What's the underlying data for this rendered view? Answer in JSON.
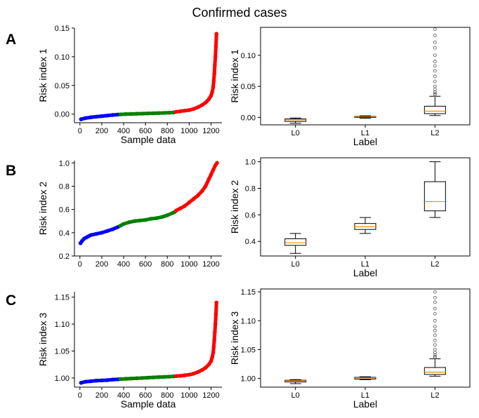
{
  "title": "Confirmed cases",
  "colors": {
    "low": "#0000ff",
    "mid": "#008000",
    "high": "#ff0000",
    "median": "#ff8c00",
    "axis": "#000000",
    "flier": "#555555"
  },
  "rows": [
    {
      "letter": "A"
    },
    {
      "letter": "B"
    },
    {
      "letter": "C"
    }
  ],
  "chart_data": [
    {
      "type": "scatter",
      "row": 0,
      "col": 0,
      "xlabel": "Sample data",
      "ylabel": "Risk index 1",
      "xlim": [
        -50,
        1300
      ],
      "ylim": [
        -0.015,
        0.15
      ],
      "xticks": [
        "0",
        "200",
        "400",
        "600",
        "800",
        "1000",
        "1200"
      ],
      "xtick_values": [
        0,
        200,
        400,
        600,
        800,
        1000,
        1200
      ],
      "yticks": [
        "0.00",
        "0.05",
        "0.10",
        "0.15"
      ],
      "ytick_values": [
        0.0,
        0.05,
        0.1,
        0.15
      ],
      "series": [
        {
          "name": "L0",
          "color": "low",
          "x": [
            10,
            50,
            100,
            150,
            200,
            250,
            300,
            350
          ],
          "y": [
            -0.009,
            -0.007,
            -0.0055,
            -0.0045,
            -0.0035,
            -0.0025,
            -0.0015,
            -0.0008
          ]
        },
        {
          "name": "L1",
          "color": "mid",
          "x": [
            370,
            420,
            470,
            520,
            570,
            620,
            670,
            720,
            770,
            820,
            860
          ],
          "y": [
            -0.0005,
            0.0,
            0.0003,
            0.0006,
            0.0009,
            0.0012,
            0.0015,
            0.0018,
            0.0021,
            0.0025,
            0.003
          ]
        },
        {
          "name": "L2",
          "color": "high",
          "x": [
            880,
            920,
            960,
            1000,
            1040,
            1080,
            1120,
            1150,
            1180,
            1200,
            1210,
            1220,
            1225,
            1230,
            1235,
            1240,
            1245,
            1250
          ],
          "y": [
            0.004,
            0.005,
            0.006,
            0.007,
            0.009,
            0.012,
            0.016,
            0.02,
            0.026,
            0.032,
            0.038,
            0.047,
            0.058,
            0.07,
            0.085,
            0.1,
            0.118,
            0.14
          ]
        }
      ]
    },
    {
      "type": "boxplot",
      "row": 0,
      "col": 1,
      "xlabel": "Label",
      "ylabel": "Risk index 1",
      "ylim": [
        -0.012,
        0.145
      ],
      "yticks": [
        "0.00",
        "0.05",
        "0.10"
      ],
      "ytick_values": [
        0.0,
        0.05,
        0.1
      ],
      "categories": [
        "L0",
        "L1",
        "L2"
      ],
      "boxes": [
        {
          "whislo": -0.0095,
          "q1": -0.0065,
          "med": -0.004,
          "q3": -0.0025,
          "whishi": -0.001,
          "fliers": []
        },
        {
          "whislo": -0.0015,
          "q1": 0.0,
          "med": 0.0008,
          "q3": 0.0015,
          "whishi": 0.0025,
          "fliers": []
        },
        {
          "whislo": 0.003,
          "q1": 0.006,
          "med": 0.01,
          "q3": 0.018,
          "whishi": 0.034,
          "fliers": [
            0.036,
            0.038,
            0.041,
            0.045,
            0.05,
            0.058,
            0.066,
            0.075,
            0.083,
            0.09,
            0.1,
            0.112,
            0.121,
            0.132,
            0.142
          ]
        }
      ]
    },
    {
      "type": "scatter",
      "row": 1,
      "col": 0,
      "xlabel": "",
      "ylabel": "Risk index 2",
      "xlim": [
        -50,
        1300
      ],
      "ylim": [
        0.2,
        1.02
      ],
      "xticks": [
        "0",
        "200",
        "400",
        "600",
        "800",
        "1000",
        "1200"
      ],
      "xtick_values": [
        0,
        200,
        400,
        600,
        800,
        1000,
        1200
      ],
      "yticks": [
        "0.2",
        "0.4",
        "0.6",
        "0.8",
        "1.0"
      ],
      "ytick_values": [
        0.2,
        0.4,
        0.6,
        0.8,
        1.0
      ],
      "series": [
        {
          "name": "L0",
          "color": "low",
          "x": [
            5,
            20,
            40,
            60,
            80,
            100,
            150,
            200,
            250,
            300,
            350
          ],
          "y": [
            0.31,
            0.33,
            0.35,
            0.36,
            0.37,
            0.38,
            0.39,
            0.4,
            0.415,
            0.43,
            0.45
          ]
        },
        {
          "name": "L1",
          "color": "mid",
          "x": [
            370,
            400,
            450,
            500,
            550,
            600,
            650,
            700,
            750,
            800,
            850,
            870
          ],
          "y": [
            0.46,
            0.475,
            0.49,
            0.5,
            0.505,
            0.51,
            0.52,
            0.525,
            0.535,
            0.55,
            0.57,
            0.58
          ]
        },
        {
          "name": "L2",
          "color": "high",
          "x": [
            880,
            920,
            960,
            1000,
            1040,
            1080,
            1120,
            1150,
            1180,
            1200,
            1220,
            1240,
            1255
          ],
          "y": [
            0.59,
            0.61,
            0.63,
            0.66,
            0.69,
            0.72,
            0.76,
            0.8,
            0.86,
            0.9,
            0.94,
            0.98,
            1.0
          ]
        }
      ]
    },
    {
      "type": "boxplot",
      "row": 1,
      "col": 1,
      "xlabel": "Label",
      "ylabel": "Risk index 2",
      "ylim": [
        0.29,
        1.03
      ],
      "yticks": [
        "0.4",
        "0.6",
        "0.8",
        "1.0"
      ],
      "ytick_values": [
        0.4,
        0.6,
        0.8,
        1.0
      ],
      "categories": [
        "L0",
        "L1",
        "L2"
      ],
      "boxes": [
        {
          "whislo": 0.31,
          "q1": 0.37,
          "med": 0.39,
          "q3": 0.42,
          "whishi": 0.46,
          "fliers": []
        },
        {
          "whislo": 0.46,
          "q1": 0.49,
          "med": 0.51,
          "q3": 0.535,
          "whishi": 0.58,
          "fliers": []
        },
        {
          "whislo": 0.58,
          "q1": 0.63,
          "med": 0.7,
          "q3": 0.85,
          "whishi": 1.0,
          "fliers": []
        }
      ]
    },
    {
      "type": "scatter",
      "row": 2,
      "col": 0,
      "xlabel": "Sample data",
      "ylabel": "Risk index 3",
      "xlim": [
        -50,
        1300
      ],
      "ylim": [
        0.983,
        1.16
      ],
      "xticks": [
        "0",
        "200",
        "400",
        "600",
        "800",
        "1000",
        "1200"
      ],
      "xtick_values": [
        0,
        200,
        400,
        600,
        800,
        1000,
        1200
      ],
      "yticks": [
        "1.00",
        "1.05",
        "1.10",
        "1.15"
      ],
      "ytick_values": [
        1.0,
        1.05,
        1.1,
        1.15
      ],
      "series": [
        {
          "name": "L0",
          "color": "low",
          "x": [
            10,
            50,
            100,
            150,
            200,
            250,
            300,
            350
          ],
          "y": [
            0.991,
            0.993,
            0.994,
            0.995,
            0.9955,
            0.996,
            0.997,
            0.9975
          ]
        },
        {
          "name": "L1",
          "color": "mid",
          "x": [
            370,
            420,
            470,
            520,
            570,
            620,
            670,
            720,
            770,
            820,
            860
          ],
          "y": [
            0.998,
            0.9985,
            0.999,
            0.9995,
            1.0,
            1.0005,
            1.001,
            1.0015,
            1.002,
            1.0025,
            1.003
          ]
        },
        {
          "name": "L2",
          "color": "high",
          "x": [
            880,
            920,
            960,
            1000,
            1040,
            1080,
            1120,
            1150,
            1180,
            1200,
            1210,
            1220,
            1225,
            1230,
            1235,
            1240,
            1245,
            1250
          ],
          "y": [
            1.0035,
            1.004,
            1.005,
            1.006,
            1.008,
            1.011,
            1.015,
            1.019,
            1.025,
            1.031,
            1.038,
            1.047,
            1.058,
            1.07,
            1.085,
            1.1,
            1.118,
            1.14
          ]
        }
      ]
    },
    {
      "type": "boxplot",
      "row": 2,
      "col": 1,
      "xlabel": "Label",
      "ylabel": "Risk index 3",
      "ylim": [
        0.985,
        1.155
      ],
      "yticks": [
        "1.00",
        "1.05",
        "1.10",
        "1.15"
      ],
      "ytick_values": [
        1.0,
        1.05,
        1.1,
        1.15
      ],
      "categories": [
        "L0",
        "L1",
        "L2"
      ],
      "boxes": [
        {
          "whislo": 0.991,
          "q1": 0.994,
          "med": 0.996,
          "q3": 0.997,
          "whishi": 0.998,
          "fliers": []
        },
        {
          "whislo": 0.998,
          "q1": 0.999,
          "med": 1.001,
          "q3": 1.002,
          "whishi": 1.003,
          "fliers": []
        },
        {
          "whislo": 1.004,
          "q1": 1.007,
          "med": 1.011,
          "q3": 1.019,
          "whishi": 1.034,
          "fliers": [
            1.036,
            1.038,
            1.041,
            1.045,
            1.05,
            1.058,
            1.066,
            1.075,
            1.083,
            1.09,
            1.1,
            1.112,
            1.121,
            1.132,
            1.14,
            1.15
          ]
        }
      ]
    }
  ]
}
